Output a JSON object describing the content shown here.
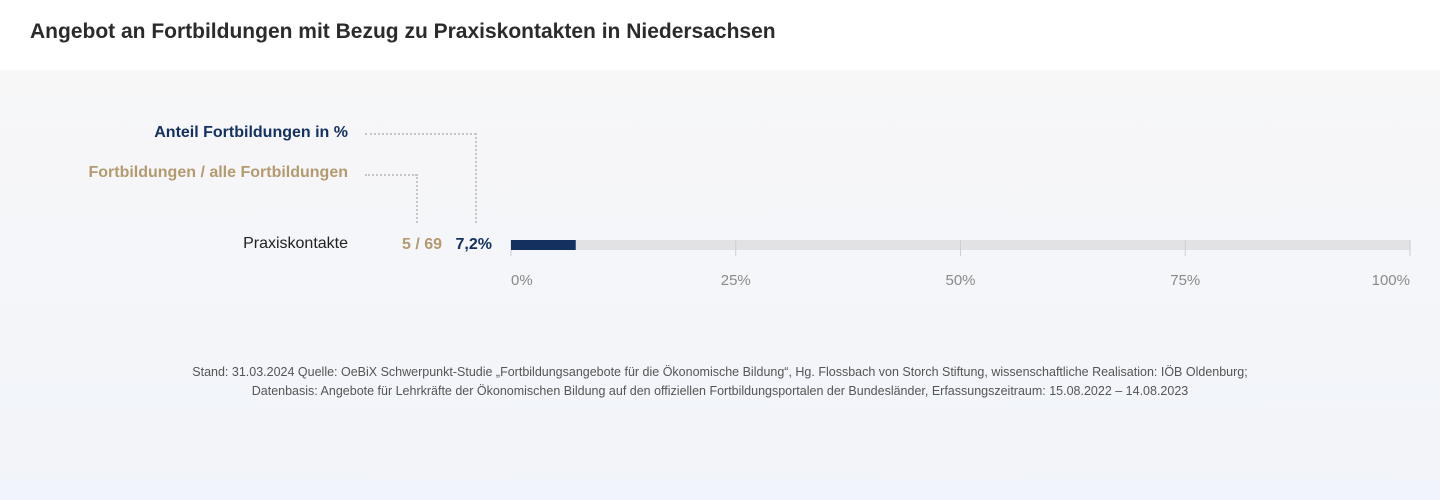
{
  "header": {
    "title": "Angebot an Fortbildungen mit Bezug zu Praxiskontakten in Niedersachsen"
  },
  "legend": {
    "percent_label": "Anteil Fortbildungen  in %",
    "count_label": "Fortbildungen / alle Fortbildungen"
  },
  "colors": {
    "primary": "#13305f",
    "secondary": "#b49a6f",
    "track": "#e2e2e4",
    "tick_text": "#8a8a8a"
  },
  "chart_data": {
    "type": "bar",
    "orientation": "horizontal",
    "categories": [
      "Praxiskontakte"
    ],
    "values": [
      7.2
    ],
    "value_labels": [
      "7,2%"
    ],
    "count_labels": [
      "5 / 69"
    ],
    "counts": [
      {
        "part": 5,
        "total": 69
      }
    ],
    "xlim": [
      0,
      100
    ],
    "xticks": [
      0,
      25,
      50,
      75,
      100
    ],
    "xtick_labels": [
      "0%",
      "25%",
      "50%",
      "75%",
      "100%"
    ],
    "grid": true
  },
  "footer": {
    "source_line1": "Stand: 31.03.2024 Quelle: OeBiX Schwerpunkt-Studie „Fortbildungsangebote für die Ökonomische Bildung“, Hg. Flossbach von Storch Stiftung, wissenschaftliche Realisation: IÖB Oldenburg;",
    "source_line2": "Datenbasis: Angebote für Lehrkräfte der Ökonomischen Bildung auf den offiziellen Fortbildungsportalen der Bundesländer, Erfassungszeitraum: 15.08.2022 – 14.08.2023"
  }
}
